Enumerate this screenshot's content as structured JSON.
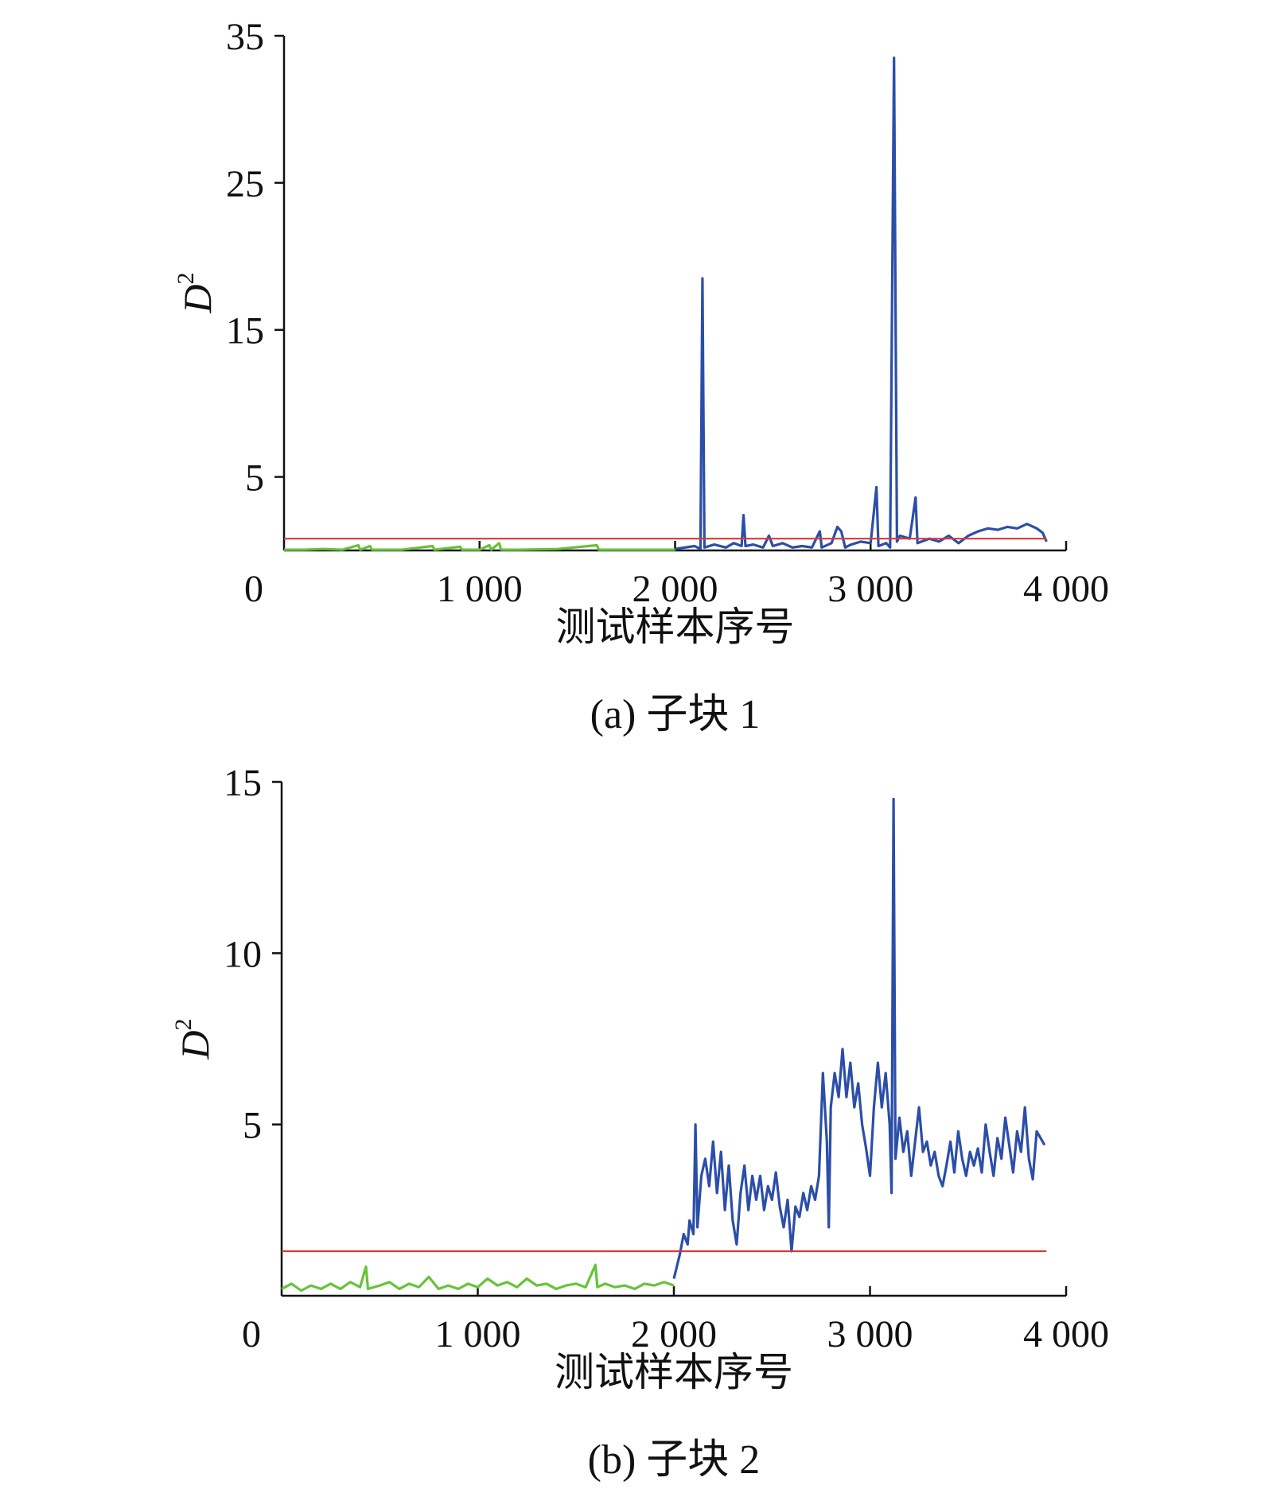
{
  "chart_data": [
    {
      "type": "line",
      "caption": "(a) 子块 1",
      "xlabel": "测试样本序号",
      "ylabel": "D",
      "ylabel_sup": "2",
      "xlim": [
        0,
        4000
      ],
      "ylim": [
        0,
        35
      ],
      "x_ticks": [
        0,
        1000,
        2000,
        3000,
        4000
      ],
      "x_tick_labels": [
        "0",
        "1 000",
        "2 000",
        "3 000",
        "4 000"
      ],
      "y_ticks": [
        5,
        15,
        25,
        35
      ],
      "y_tick_labels": [
        "5",
        "15",
        "25",
        "35"
      ],
      "grid": false,
      "threshold": 0.8,
      "series": [
        {
          "color": "#66c33a",
          "points": [
            [
              0,
              0.05
            ],
            [
              100,
              0.05
            ],
            [
              200,
              0.1
            ],
            [
              300,
              0.05
            ],
            [
              380,
              0.35
            ],
            [
              390,
              0.05
            ],
            [
              440,
              0.3
            ],
            [
              450,
              0.05
            ],
            [
              600,
              0.05
            ],
            [
              760,
              0.3
            ],
            [
              770,
              0.05
            ],
            [
              900,
              0.25
            ],
            [
              910,
              0.05
            ],
            [
              1000,
              0.05
            ],
            [
              1050,
              0.35
            ],
            [
              1060,
              0.05
            ],
            [
              1100,
              0.5
            ],
            [
              1110,
              0.05
            ],
            [
              1200,
              0.05
            ],
            [
              1400,
              0.1
            ],
            [
              1600,
              0.35
            ],
            [
              1610,
              0.05
            ],
            [
              1800,
              0.05
            ],
            [
              2000,
              0.05
            ]
          ]
        },
        {
          "color": "#2b4ea8",
          "points": [
            [
              2000,
              0.1
            ],
            [
              2050,
              0.2
            ],
            [
              2100,
              0.3
            ],
            [
              2130,
              0.1
            ],
            [
              2140,
              18.5
            ],
            [
              2150,
              0.2
            ],
            [
              2200,
              0.4
            ],
            [
              2260,
              0.2
            ],
            [
              2300,
              0.5
            ],
            [
              2340,
              0.3
            ],
            [
              2350,
              2.4
            ],
            [
              2360,
              0.3
            ],
            [
              2400,
              0.4
            ],
            [
              2450,
              0.2
            ],
            [
              2480,
              1.0
            ],
            [
              2500,
              0.3
            ],
            [
              2550,
              0.5
            ],
            [
              2600,
              0.2
            ],
            [
              2650,
              0.3
            ],
            [
              2700,
              0.2
            ],
            [
              2740,
              1.3
            ],
            [
              2750,
              0.2
            ],
            [
              2800,
              0.5
            ],
            [
              2830,
              1.6
            ],
            [
              2850,
              1.3
            ],
            [
              2870,
              0.2
            ],
            [
              2900,
              0.4
            ],
            [
              2950,
              0.6
            ],
            [
              3000,
              0.5
            ],
            [
              3030,
              4.3
            ],
            [
              3040,
              0.3
            ],
            [
              3080,
              0.5
            ],
            [
              3100,
              0.2
            ],
            [
              3120,
              33.5
            ],
            [
              3135,
              0.6
            ],
            [
              3150,
              1.0
            ],
            [
              3200,
              0.8
            ],
            [
              3230,
              3.6
            ],
            [
              3240,
              0.5
            ],
            [
              3300,
              0.8
            ],
            [
              3350,
              0.6
            ],
            [
              3400,
              1.0
            ],
            [
              3450,
              0.5
            ],
            [
              3500,
              1.0
            ],
            [
              3550,
              1.3
            ],
            [
              3600,
              1.5
            ],
            [
              3650,
              1.4
            ],
            [
              3700,
              1.6
            ],
            [
              3750,
              1.5
            ],
            [
              3800,
              1.8
            ],
            [
              3850,
              1.5
            ],
            [
              3880,
              1.2
            ],
            [
              3900,
              0.6
            ]
          ]
        },
        {
          "color": "#d63a3a",
          "points": [
            [
              0,
              0.8
            ],
            [
              3900,
              0.8
            ]
          ]
        }
      ]
    },
    {
      "type": "line",
      "caption": "(b) 子块 2",
      "xlabel": "测试样本序号",
      "ylabel": "D",
      "ylabel_sup": "2",
      "xlim": [
        0,
        4000
      ],
      "ylim": [
        0,
        15
      ],
      "x_ticks": [
        0,
        1000,
        2000,
        3000,
        4000
      ],
      "x_tick_labels": [
        "0",
        "1 000",
        "2 000",
        "3 000",
        "4 000"
      ],
      "y_ticks": [
        5,
        10,
        15
      ],
      "y_tick_labels": [
        "5",
        "10",
        "15"
      ],
      "grid": false,
      "threshold": 1.3,
      "series": [
        {
          "color": "#66c33a",
          "points": [
            [
              0,
              0.2
            ],
            [
              50,
              0.35
            ],
            [
              100,
              0.15
            ],
            [
              150,
              0.3
            ],
            [
              200,
              0.2
            ],
            [
              250,
              0.35
            ],
            [
              300,
              0.2
            ],
            [
              350,
              0.4
            ],
            [
              400,
              0.25
            ],
            [
              430,
              0.85
            ],
            [
              440,
              0.2
            ],
            [
              500,
              0.3
            ],
            [
              550,
              0.4
            ],
            [
              600,
              0.2
            ],
            [
              650,
              0.35
            ],
            [
              700,
              0.25
            ],
            [
              750,
              0.55
            ],
            [
              800,
              0.2
            ],
            [
              850,
              0.3
            ],
            [
              900,
              0.2
            ],
            [
              950,
              0.35
            ],
            [
              1000,
              0.25
            ],
            [
              1050,
              0.5
            ],
            [
              1100,
              0.3
            ],
            [
              1150,
              0.4
            ],
            [
              1200,
              0.25
            ],
            [
              1250,
              0.5
            ],
            [
              1300,
              0.3
            ],
            [
              1350,
              0.35
            ],
            [
              1400,
              0.2
            ],
            [
              1450,
              0.3
            ],
            [
              1500,
              0.35
            ],
            [
              1550,
              0.25
            ],
            [
              1600,
              0.9
            ],
            [
              1610,
              0.25
            ],
            [
              1650,
              0.35
            ],
            [
              1700,
              0.25
            ],
            [
              1750,
              0.3
            ],
            [
              1800,
              0.2
            ],
            [
              1850,
              0.35
            ],
            [
              1900,
              0.3
            ],
            [
              1950,
              0.4
            ],
            [
              2000,
              0.3
            ]
          ]
        },
        {
          "color": "#2b4ea8",
          "points": [
            [
              2000,
              0.5
            ],
            [
              2030,
              1.2
            ],
            [
              2050,
              1.8
            ],
            [
              2070,
              1.5
            ],
            [
              2080,
              2.2
            ],
            [
              2100,
              1.8
            ],
            [
              2110,
              5.0
            ],
            [
              2120,
              2.0
            ],
            [
              2140,
              3.5
            ],
            [
              2160,
              4.0
            ],
            [
              2180,
              3.2
            ],
            [
              2200,
              4.5
            ],
            [
              2220,
              3.0
            ],
            [
              2240,
              4.2
            ],
            [
              2260,
              2.5
            ],
            [
              2280,
              3.8
            ],
            [
              2300,
              2.2
            ],
            [
              2320,
              1.5
            ],
            [
              2340,
              3.0
            ],
            [
              2360,
              3.8
            ],
            [
              2380,
              2.5
            ],
            [
              2400,
              3.5
            ],
            [
              2420,
              2.8
            ],
            [
              2440,
              3.5
            ],
            [
              2460,
              2.5
            ],
            [
              2480,
              3.2
            ],
            [
              2500,
              2.8
            ],
            [
              2520,
              3.6
            ],
            [
              2540,
              2.6
            ],
            [
              2560,
              2.0
            ],
            [
              2580,
              2.8
            ],
            [
              2600,
              1.3
            ],
            [
              2620,
              2.6
            ],
            [
              2640,
              2.3
            ],
            [
              2660,
              3.0
            ],
            [
              2680,
              2.5
            ],
            [
              2700,
              3.2
            ],
            [
              2720,
              2.8
            ],
            [
              2740,
              3.5
            ],
            [
              2760,
              6.5
            ],
            [
              2780,
              4.5
            ],
            [
              2790,
              2.0
            ],
            [
              2800,
              5.5
            ],
            [
              2820,
              6.5
            ],
            [
              2840,
              5.8
            ],
            [
              2860,
              7.2
            ],
            [
              2880,
              5.8
            ],
            [
              2900,
              6.8
            ],
            [
              2920,
              5.5
            ],
            [
              2940,
              6.2
            ],
            [
              2960,
              5.0
            ],
            [
              2980,
              4.3
            ],
            [
              3000,
              3.5
            ],
            [
              3020,
              5.5
            ],
            [
              3040,
              6.8
            ],
            [
              3060,
              5.5
            ],
            [
              3080,
              6.5
            ],
            [
              3100,
              5.0
            ],
            [
              3110,
              3.0
            ],
            [
              3120,
              14.5
            ],
            [
              3130,
              4.0
            ],
            [
              3150,
              5.2
            ],
            [
              3170,
              4.2
            ],
            [
              3190,
              4.8
            ],
            [
              3210,
              3.5
            ],
            [
              3230,
              4.5
            ],
            [
              3250,
              5.5
            ],
            [
              3270,
              4.2
            ],
            [
              3290,
              4.5
            ],
            [
              3310,
              3.8
            ],
            [
              3330,
              4.2
            ],
            [
              3350,
              3.5
            ],
            [
              3370,
              3.2
            ],
            [
              3390,
              3.8
            ],
            [
              3410,
              4.5
            ],
            [
              3430,
              3.6
            ],
            [
              3450,
              4.8
            ],
            [
              3470,
              4.0
            ],
            [
              3490,
              3.5
            ],
            [
              3510,
              4.2
            ],
            [
              3530,
              3.8
            ],
            [
              3550,
              4.3
            ],
            [
              3570,
              3.6
            ],
            [
              3590,
              5.0
            ],
            [
              3610,
              4.2
            ],
            [
              3630,
              3.5
            ],
            [
              3650,
              4.6
            ],
            [
              3670,
              4.0
            ],
            [
              3690,
              5.2
            ],
            [
              3710,
              4.4
            ],
            [
              3730,
              3.6
            ],
            [
              3750,
              4.8
            ],
            [
              3770,
              4.2
            ],
            [
              3790,
              5.5
            ],
            [
              3810,
              4.0
            ],
            [
              3830,
              3.4
            ],
            [
              3850,
              4.8
            ],
            [
              3870,
              4.6
            ],
            [
              3890,
              4.4
            ]
          ]
        },
        {
          "color": "#d63a3a",
          "points": [
            [
              0,
              1.3
            ],
            [
              3900,
              1.3
            ]
          ]
        }
      ]
    }
  ]
}
